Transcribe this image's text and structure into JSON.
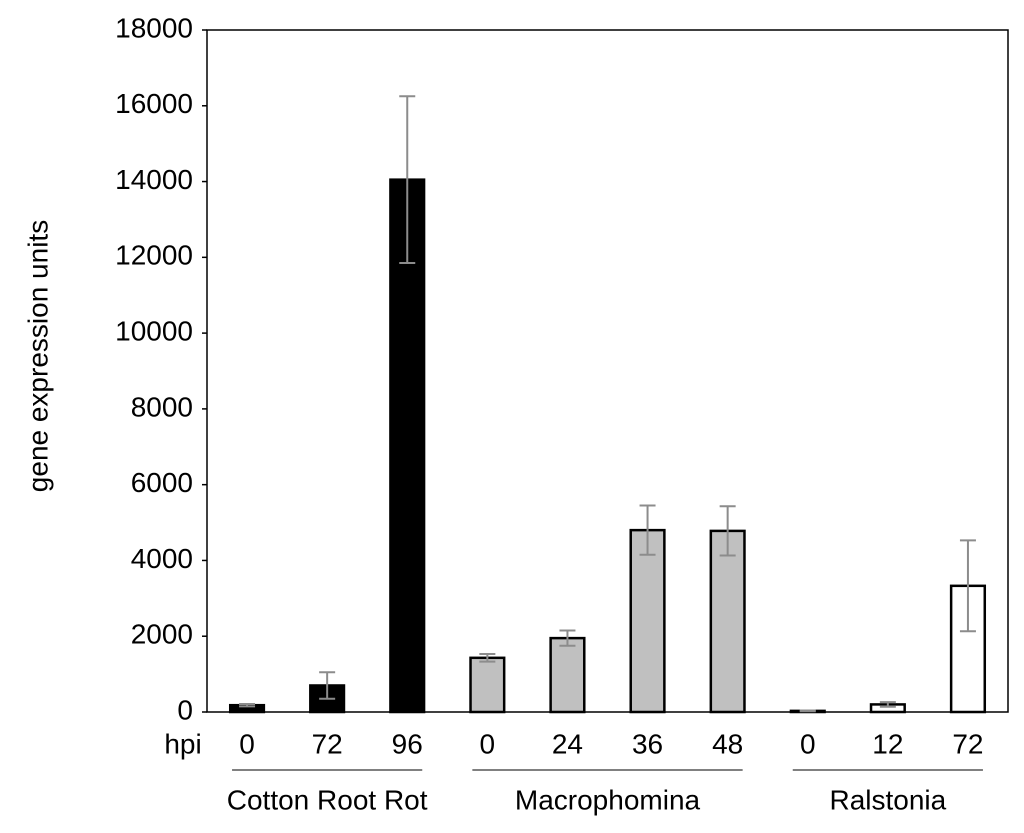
{
  "chart_data": {
    "type": "bar",
    "ylabel": "gene expression units",
    "xlabel": "hpi",
    "ylim": [
      0,
      18000
    ],
    "yticks": [
      0,
      2000,
      4000,
      6000,
      8000,
      10000,
      12000,
      14000,
      16000,
      18000
    ],
    "groups": [
      {
        "name": "Cotton Root Rot",
        "color": "#000000",
        "categories": [
          "0",
          "72",
          "96"
        ],
        "values": [
          180,
          700,
          14050
        ],
        "errors": [
          30,
          350,
          2200
        ]
      },
      {
        "name": "Macrophomina",
        "color": "#c0c0c0",
        "categories": [
          "0",
          "24",
          "36",
          "48"
        ],
        "values": [
          1430,
          1950,
          4800,
          4780
        ],
        "errors": [
          100,
          200,
          650,
          650
        ]
      },
      {
        "name": "Ralstonia",
        "color": "#ffffff",
        "categories": [
          "0",
          "12",
          "72"
        ],
        "values": [
          30,
          200,
          3330
        ],
        "errors": [
          10,
          60,
          1200
        ]
      }
    ]
  }
}
